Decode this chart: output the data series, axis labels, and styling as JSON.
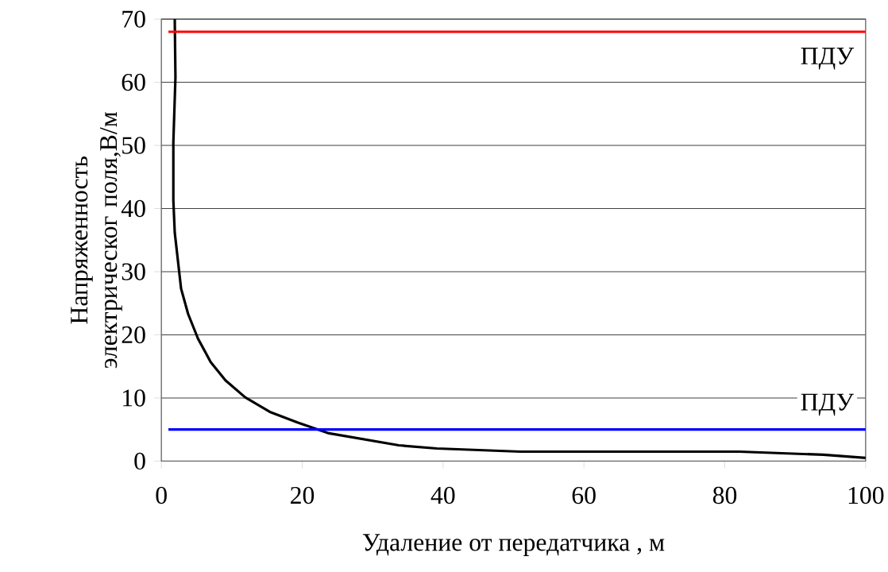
{
  "chart_data": {
    "type": "line",
    "xlabel": "Удаление от передатчика , м",
    "ylabel": "Напряженность электрическог поля,В/м",
    "x": [
      1.9,
      2.0,
      1.7,
      1.7,
      1.9,
      2.8,
      3.8,
      5.2,
      7.0,
      9.1,
      11.9,
      15.4,
      19.4,
      23.8,
      33.7,
      39.1,
      51.0,
      82.1,
      94.0,
      100
    ],
    "series": [
      {
        "color": "#000000",
        "values": [
          70,
          60.8,
          50.5,
          41.3,
          36.2,
          27.3,
          23.3,
          19.4,
          15.7,
          12.8,
          10.1,
          7.8,
          6.1,
          4.4,
          2.5,
          2.0,
          1.5,
          1.5,
          1.0,
          0.5
        ]
      }
    ],
    "xlim": [
      0,
      100
    ],
    "ylim": [
      0,
      70
    ],
    "xticks": [
      0,
      20,
      40,
      60,
      80,
      100
    ],
    "yticks": [
      0,
      10,
      20,
      30,
      40,
      50,
      60,
      70
    ],
    "grid": "y",
    "ref_lines": [
      {
        "axis": "y",
        "value": 68,
        "color": "#ff0000",
        "label": "ПДУ"
      },
      {
        "axis": "y",
        "value": 5,
        "color": "#0000ff",
        "label": "ПДУ"
      }
    ]
  }
}
